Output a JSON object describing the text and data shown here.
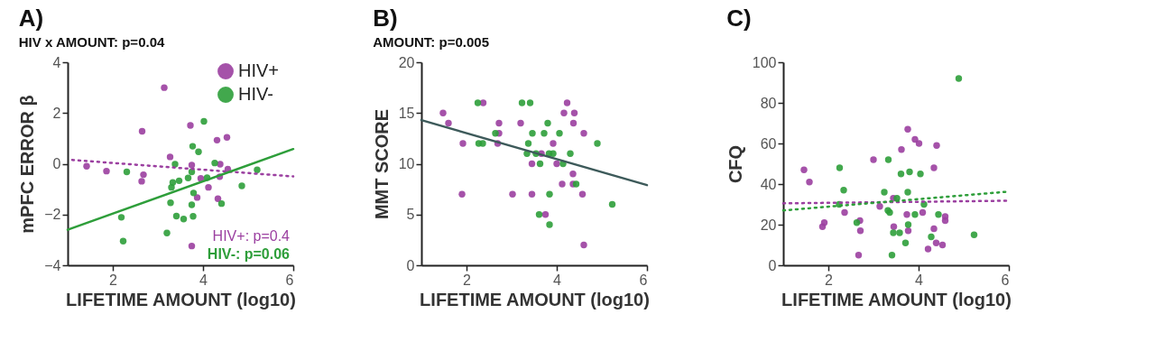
{
  "chart_data": [
    {
      "type": "scatter",
      "title": "A)",
      "subtitle": "HIV x AMOUNT: p=0.04",
      "xlabel": "LIFETIME AMOUNT (log10)",
      "ylabel": "mPFC ERROR β",
      "xlim": [
        1,
        6
      ],
      "xticks": [
        2,
        4,
        6
      ],
      "ylim": [
        -4,
        4
      ],
      "yticks": [
        -4,
        -2,
        0,
        2,
        4
      ],
      "grid": false,
      "legend": "top right",
      "annotations": [
        "HIV+: p=0.4",
        "HIV-: p=0.06"
      ],
      "series": [
        {
          "name": "HIV+",
          "color": "#9b3fa0",
          "marker": "circle",
          "x": [
            1.42,
            1.86,
            3.14,
            2.65,
            2.68,
            2.64,
            3.27,
            3.72,
            3.75,
            3.75,
            3.95,
            3.87,
            4.12,
            4.31,
            4.53,
            4.38,
            4.37,
            4.55,
            4.33
          ],
          "values": [
            -0.1,
            -0.29,
            3.0,
            1.28,
            -0.43,
            -0.69,
            0.27,
            1.51,
            -0.05,
            -3.24,
            -0.58,
            -1.33,
            -0.93,
            0.93,
            1.04,
            -0.02,
            -0.51,
            -0.21,
            -1.38
          ]
        },
        {
          "name": "HIV-",
          "color": "#2e9e3a",
          "marker": "circle",
          "x": [
            2.31,
            2.19,
            2.23,
            3.2,
            3.28,
            3.3,
            3.38,
            3.33,
            3.47,
            3.41,
            3.57,
            3.67,
            3.77,
            3.75,
            3.75,
            3.78,
            3.79,
            3.9,
            4.02,
            4.09,
            4.26,
            4.41,
            4.86,
            5.2
          ],
          "values": [
            -0.32,
            -2.11,
            -3.05,
            -2.73,
            -1.54,
            -0.93,
            -0.02,
            -0.74,
            -0.67,
            -2.06,
            -2.18,
            -0.56,
            0.69,
            -0.32,
            -1.62,
            -2.07,
            -1.15,
            0.47,
            1.67,
            -0.55,
            0.03,
            -1.57,
            -0.87,
            -0.24
          ]
        },
        {
          "type": "line",
          "color": "#9b3fa0",
          "line_style": "dotted",
          "x": [
            1.1,
            6
          ],
          "values": [
            0.15,
            -0.5
          ]
        },
        {
          "type": "line",
          "color": "#2e9e3a",
          "line_style": "solid",
          "x": [
            1,
            6
          ],
          "values": [
            -2.6,
            0.58
          ]
        }
      ]
    },
    {
      "type": "scatter",
      "title": "B)",
      "subtitle": "AMOUNT: p=0.005",
      "xlabel": "LIFETIME AMOUNT (log10)",
      "ylabel": "MMT SCORE",
      "xlim": [
        1,
        6
      ],
      "xticks": [
        2,
        4,
        6
      ],
      "ylim": [
        0,
        20
      ],
      "yticks": [
        0,
        5,
        10,
        15,
        20
      ],
      "grid": false,
      "series": [
        {
          "color": "#9b3fa0",
          "marker": "circle",
          "x": [
            1.48,
            1.6,
            1.92,
            1.9,
            2.37,
            2.72,
            2.72,
            2.69,
            3.2,
            3.02,
            3.45,
            3.45,
            3.66,
            3.75,
            3.92,
            4.0,
            4.12,
            4.16,
            4.23,
            4.37,
            4.39,
            4.36,
            4.36,
            4.6,
            4.57,
            4.6
          ],
          "values": [
            15,
            14,
            12,
            7,
            16,
            14,
            13,
            12,
            14,
            7,
            10,
            7,
            11,
            5,
            12,
            10,
            8,
            15,
            16,
            14,
            15,
            9,
            8,
            13,
            7,
            2
          ]
        },
        {
          "color": "#2e9e3a",
          "marker": "circle",
          "x": [
            2.25,
            2.27,
            2.36,
            2.64,
            3.23,
            3.41,
            3.37,
            3.34,
            3.46,
            3.54,
            3.63,
            3.61,
            3.72,
            3.8,
            3.83,
            3.84,
            3.84,
            3.92,
            4.06,
            4.14,
            4.3,
            4.43,
            4.9,
            5.23
          ],
          "values": [
            16,
            12,
            12,
            13,
            16,
            16,
            12,
            11,
            13,
            11,
            10,
            5,
            13,
            14,
            11,
            7,
            4,
            11,
            13,
            10,
            11,
            8,
            12,
            6
          ]
        },
        {
          "type": "line",
          "color": "#3d5a5a",
          "line_style": "solid",
          "x": [
            1,
            6
          ],
          "values": [
            14.3,
            7.9
          ]
        }
      ]
    },
    {
      "type": "scatter",
      "title": "C)",
      "xlabel": "LIFETIME AMOUNT (log10)",
      "ylabel": "CFQ",
      "xlim": [
        1,
        6
      ],
      "xticks": [
        2,
        4,
        6
      ],
      "ylim": [
        0,
        100
      ],
      "yticks": [
        0,
        20,
        40,
        60,
        80,
        100
      ],
      "grid": false,
      "series": [
        {
          "color": "#9b3fa0",
          "marker": "circle",
          "x": [
            1.46,
            1.58,
            1.87,
            1.91,
            2.36,
            2.67,
            2.7,
            2.71,
            3.0,
            3.14,
            3.44,
            3.45,
            3.62,
            3.76,
            3.74,
            3.77,
            3.92,
            4.01,
            4.09,
            4.21,
            4.34,
            4.34,
            4.4,
            4.39,
            4.53,
            4.59,
            4.59
          ],
          "values": [
            47,
            41,
            19,
            21,
            26,
            5,
            22,
            17,
            52,
            29,
            33,
            19,
            57,
            67,
            25,
            17,
            62,
            60,
            26,
            8,
            48,
            18,
            59,
            11,
            10,
            24,
            22
          ]
        },
        {
          "color": "#2e9e3a",
          "marker": "circle",
          "x": [
            2.24,
            2.25,
            2.34,
            2.63,
            3.24,
            3.33,
            3.32,
            3.36,
            3.41,
            3.44,
            3.52,
            3.58,
            3.61,
            3.71,
            3.76,
            3.77,
            3.8,
            3.92,
            4.04,
            4.12,
            4.28,
            4.44,
            4.89,
            5.23
          ],
          "values": [
            30,
            48,
            37,
            21,
            36,
            52,
            27,
            26,
            5,
            16,
            33,
            16,
            45,
            11,
            36,
            20,
            46,
            25,
            45,
            30,
            14,
            25,
            92,
            15
          ]
        },
        {
          "type": "line",
          "color": "#9b3fa0",
          "line_style": "dotted",
          "x": [
            1,
            6
          ],
          "values": [
            30.5,
            31.8
          ]
        },
        {
          "type": "line",
          "color": "#2e9e3a",
          "line_style": "dotted",
          "x": [
            1,
            6
          ],
          "values": [
            27,
            36.3
          ]
        }
      ]
    }
  ]
}
